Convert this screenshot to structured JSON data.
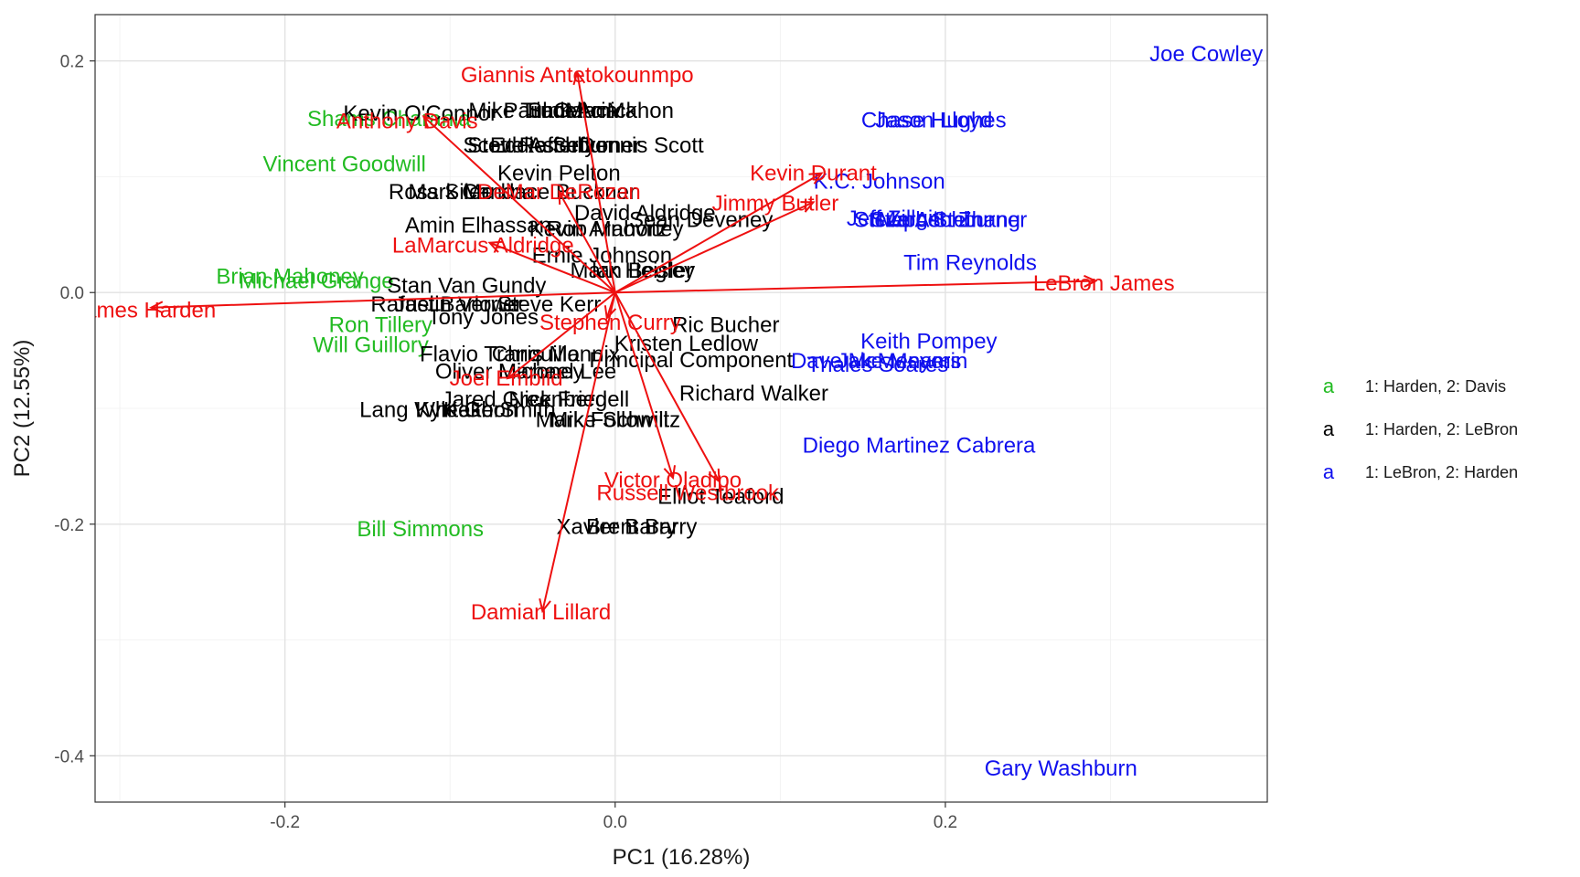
{
  "chart_data": {
    "type": "scatter",
    "subtype": "pca-biplot",
    "title": "",
    "xlabel": "PC1 (16.28%)",
    "ylabel": "PC2 (12.55%)",
    "xlim": [
      -0.315,
      0.395
    ],
    "ylim": [
      -0.44,
      0.24
    ],
    "xticks": [
      -0.2,
      0.0,
      0.2
    ],
    "xtick_labels": [
      "-0.2",
      "0.0",
      "0.2"
    ],
    "yticks": [
      -0.4,
      -0.2,
      0.0,
      0.2
    ],
    "ytick_labels": [
      "-0.4",
      "-0.2",
      "0.0",
      "0.2"
    ],
    "grid": true,
    "legend_position": "right",
    "legend": [
      {
        "key": "a",
        "label": "1: Harden, 2: Davis",
        "color": "#22bb22"
      },
      {
        "key": "a",
        "label": "1: Harden, 2: LeBron",
        "color": "#000000"
      },
      {
        "key": "a",
        "label": "1: LeBron, 2: Harden",
        "color": "#1010ee"
      }
    ],
    "colors": {
      "green": "#22bb22",
      "black": "#000000",
      "blue": "#1010ee",
      "arrow": "#ee1010"
    },
    "points": [
      {
        "label": "Joe Cowley",
        "x": 0.358,
        "y": 0.206,
        "group": "blue"
      },
      {
        "label": "Jason Lloyd",
        "x": 0.193,
        "y": 0.149,
        "group": "blue"
      },
      {
        "label": "Chase Hughes",
        "x": 0.193,
        "y": 0.149,
        "group": "blue"
      },
      {
        "label": "K.C. Johnson",
        "x": 0.16,
        "y": 0.096,
        "group": "blue"
      },
      {
        "label": "Jeff Zillgitt",
        "x": 0.17,
        "y": 0.064,
        "group": "blue"
      },
      {
        "label": "Steve Aschburner",
        "x": 0.197,
        "y": 0.063,
        "group": "blue"
      },
      {
        "label": "Marc Stein",
        "x": 0.191,
        "y": 0.063,
        "group": "blue"
      },
      {
        "label": "Stephen Zhang",
        "x": 0.2,
        "y": 0.063,
        "group": "blue"
      },
      {
        "label": "Tim Reynolds",
        "x": 0.215,
        "y": 0.026,
        "group": "blue"
      },
      {
        "label": "Keith Pompey",
        "x": 0.19,
        "y": -0.042,
        "group": "blue"
      },
      {
        "label": "Dave McMenamin",
        "x": 0.16,
        "y": -0.059,
        "group": "blue"
      },
      {
        "label": "Thales Soares",
        "x": 0.159,
        "y": -0.062,
        "group": "blue"
      },
      {
        "label": "Jake Meyers",
        "x": 0.172,
        "y": -0.059,
        "group": "blue"
      },
      {
        "label": "Diego Martinez Cabrera",
        "x": 0.184,
        "y": -0.132,
        "group": "blue"
      },
      {
        "label": "Gary Washburn",
        "x": 0.27,
        "y": -0.411,
        "group": "blue"
      },
      {
        "label": "Shams Charania",
        "x": -0.137,
        "y": 0.15,
        "group": "green"
      },
      {
        "label": "Vincent Goodwill",
        "x": -0.164,
        "y": 0.111,
        "group": "green"
      },
      {
        "label": "Brian Mahoney",
        "x": -0.197,
        "y": 0.014,
        "group": "green"
      },
      {
        "label": "Michael Grange",
        "x": -0.181,
        "y": 0.01,
        "group": "green"
      },
      {
        "label": "Ron Tillery",
        "x": -0.142,
        "y": -0.028,
        "group": "green"
      },
      {
        "label": "Will Guillory",
        "x": -0.148,
        "y": -0.045,
        "group": "green"
      },
      {
        "label": "Bill Simmons",
        "x": -0.118,
        "y": -0.204,
        "group": "green"
      },
      {
        "label": "Kevin O'Connor",
        "x": -0.118,
        "y": 0.155,
        "group": "black"
      },
      {
        "label": "Mike Trudell",
        "x": -0.053,
        "y": 0.157,
        "group": "black"
      },
      {
        "label": "Paul Garcia",
        "x": -0.033,
        "y": 0.157,
        "group": "black"
      },
      {
        "label": "Sam Amick",
        "x": -0.02,
        "y": 0.157,
        "group": "black"
      },
      {
        "label": "Tim MacMahon",
        "x": -0.01,
        "y": 0.157,
        "group": "black"
      },
      {
        "label": "Scott Rafferty",
        "x": -0.052,
        "y": 0.127,
        "group": "black"
      },
      {
        "label": "Eddie Sefko",
        "x": -0.04,
        "y": 0.127,
        "group": "black"
      },
      {
        "label": "Steve Aschburner",
        "x": -0.037,
        "y": 0.127,
        "group": "black"
      },
      {
        "label": "Dennis Scott",
        "x": 0.016,
        "y": 0.127,
        "group": "black"
      },
      {
        "label": "Kevin Pelton",
        "x": -0.034,
        "y": 0.103,
        "group": "black"
      },
      {
        "label": "Ross Siler",
        "x": -0.107,
        "y": 0.087,
        "group": "black"
      },
      {
        "label": "Mark Medina",
        "x": -0.087,
        "y": 0.087,
        "group": "black"
      },
      {
        "label": "Candace Buckner",
        "x": -0.04,
        "y": 0.087,
        "group": "black"
      },
      {
        "label": "David Aldridge",
        "x": 0.018,
        "y": 0.069,
        "group": "black"
      },
      {
        "label": "Sean Deveney",
        "x": 0.052,
        "y": 0.063,
        "group": "black"
      },
      {
        "label": "Amin Elhassan",
        "x": -0.083,
        "y": 0.058,
        "group": "black"
      },
      {
        "label": "Kevin Arnovitz",
        "x": -0.01,
        "y": 0.055,
        "group": "black"
      },
      {
        "label": "Rob Mahoney",
        "x": 0.0,
        "y": 0.055,
        "group": "black"
      },
      {
        "label": "Ernie Johnson",
        "x": -0.008,
        "y": 0.032,
        "group": "black"
      },
      {
        "label": "Mark Heisler",
        "x": 0.01,
        "y": 0.019,
        "group": "black"
      },
      {
        "label": "Ian Begley",
        "x": 0.017,
        "y": 0.019,
        "group": "black"
      },
      {
        "label": "Rafael Barlowe",
        "x": -0.103,
        "y": -0.01,
        "group": "black"
      },
      {
        "label": "Justin Verrier",
        "x": -0.095,
        "y": -0.01,
        "group": "black"
      },
      {
        "label": "Stan Van Gundy",
        "x": -0.09,
        "y": 0.006,
        "group": "black"
      },
      {
        "label": "Tony Jones",
        "x": -0.08,
        "y": -0.021,
        "group": "black"
      },
      {
        "label": "Steve Kerr",
        "x": -0.04,
        "y": -0.01,
        "group": "black"
      },
      {
        "label": "Ric Bucher",
        "x": 0.067,
        "y": -0.028,
        "group": "black"
      },
      {
        "label": "Kristen Ledlow",
        "x": 0.043,
        "y": -0.044,
        "group": "black"
      },
      {
        "label": "Flavio Tranquillo",
        "x": -0.07,
        "y": -0.053,
        "group": "black"
      },
      {
        "label": "Chris Mannix",
        "x": -0.036,
        "y": -0.053,
        "group": "black"
      },
      {
        "label": "Principal Component",
        "x": 0.046,
        "y": -0.058,
        "group": "black"
      },
      {
        "label": "Oliver Maroney",
        "x": -0.064,
        "y": -0.068,
        "group": "black"
      },
      {
        "label": "Michael Lee",
        "x": -0.035,
        "y": -0.068,
        "group": "black"
      },
      {
        "label": "Richard Walker",
        "x": 0.084,
        "y": -0.087,
        "group": "black"
      },
      {
        "label": "Jared Greenberg",
        "x": -0.055,
        "y": -0.092,
        "group": "black"
      },
      {
        "label": "Lang Whitaker",
        "x": -0.112,
        "y": -0.101,
        "group": "black"
      },
      {
        "label": "Kyle Goon",
        "x": -0.09,
        "y": -0.101,
        "group": "black"
      },
      {
        "label": "Keith Smith",
        "x": -0.07,
        "y": -0.101,
        "group": "black"
      },
      {
        "label": "Nick Friedell",
        "x": -0.028,
        "y": -0.092,
        "group": "black"
      },
      {
        "label": "Mark Followill",
        "x": -0.008,
        "y": -0.11,
        "group": "black"
      },
      {
        "label": "Mike Schmitz",
        "x": 0.0,
        "y": -0.11,
        "group": "black"
      },
      {
        "label": "Elliot Teaford",
        "x": 0.064,
        "y": -0.176,
        "group": "black"
      },
      {
        "label": "Xavier Barry",
        "x": 0.001,
        "y": -0.202,
        "group": "black"
      },
      {
        "label": "Brent Barry",
        "x": 0.016,
        "y": -0.202,
        "group": "black"
      }
    ],
    "arrows": [
      {
        "label": "Giannis Antetokounmpo",
        "x": -0.023,
        "y": 0.19,
        "lx": -0.023,
        "ly": 0.188
      },
      {
        "label": "Anthony Davis",
        "x": -0.116,
        "y": 0.152,
        "lx": -0.126,
        "ly": 0.148
      },
      {
        "label": "DeMar DeRozan",
        "x": -0.034,
        "y": 0.087,
        "lx": -0.034,
        "ly": 0.087
      },
      {
        "label": "Kevin Durant",
        "x": 0.125,
        "y": 0.103,
        "lx": 0.12,
        "ly": 0.103
      },
      {
        "label": "Jimmy Butler",
        "x": 0.12,
        "y": 0.078,
        "lx": 0.097,
        "ly": 0.077
      },
      {
        "label": "LaMarcus Aldridge",
        "x": -0.076,
        "y": 0.043,
        "lx": -0.08,
        "ly": 0.041
      },
      {
        "label": "LeBron James",
        "x": 0.291,
        "y": 0.01,
        "lx": 0.296,
        "ly": 0.008
      },
      {
        "label": "James Harden",
        "x": -0.281,
        "y": -0.013,
        "lx": -0.285,
        "ly": -0.015
      },
      {
        "label": "Stephen Curry",
        "x": -0.005,
        "y": -0.022,
        "lx": -0.003,
        "ly": -0.026
      },
      {
        "label": "Joel Embiid",
        "x": -0.065,
        "y": -0.074,
        "lx": -0.066,
        "ly": -0.074
      },
      {
        "label": "Victor Oladipo",
        "x": 0.035,
        "y": -0.16,
        "lx": 0.035,
        "ly": -0.162
      },
      {
        "label": "Russell Westbrook",
        "x": 0.063,
        "y": -0.163,
        "lx": 0.044,
        "ly": -0.173
      },
      {
        "label": "Damian Lillard",
        "x": -0.044,
        "y": -0.275,
        "lx": -0.045,
        "ly": -0.276
      }
    ]
  }
}
